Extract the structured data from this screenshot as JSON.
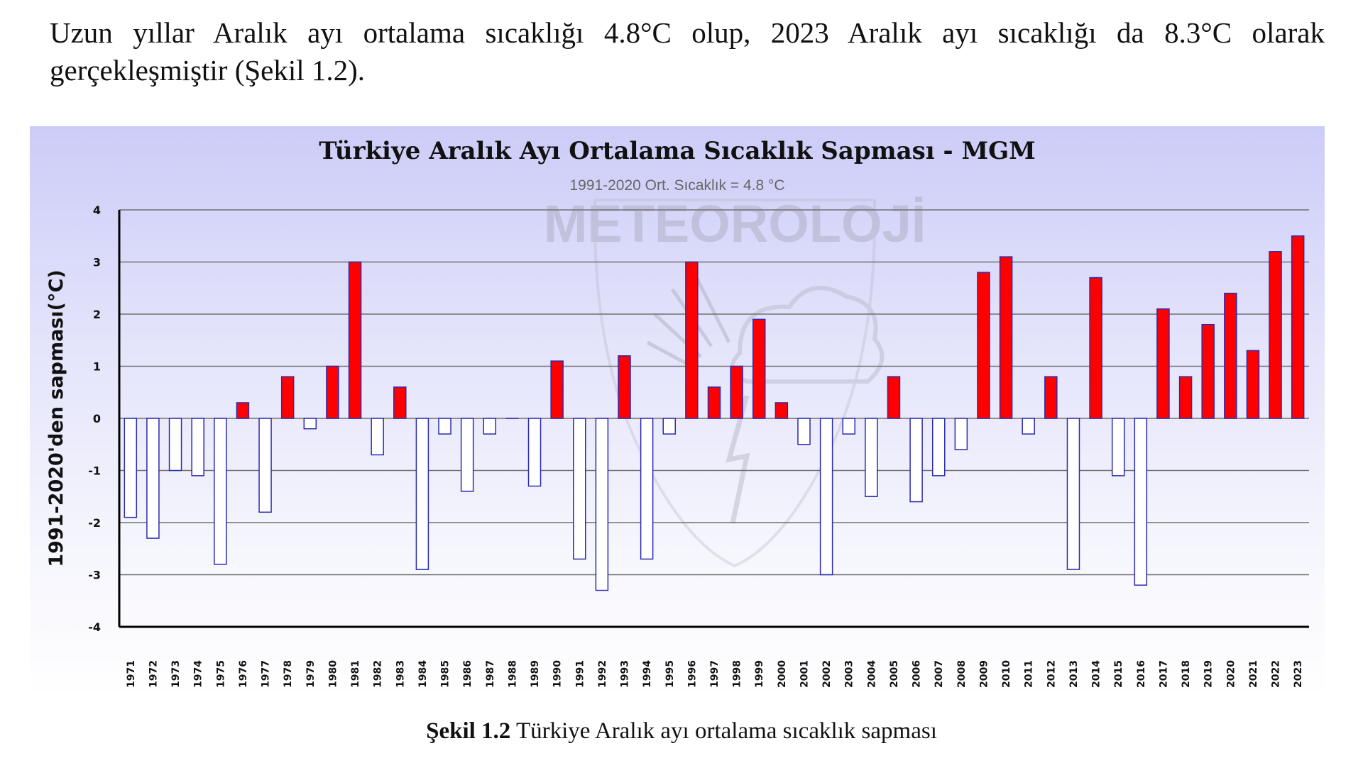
{
  "document": {
    "paragraph": "Uzun yıllar Aralık ayı ortalama sıcaklığı 4.8°C olup, 2023 Aralık ayı sıcaklığı da 8.3°C olarak gerçekleşmiştir (Şekil 1.2).",
    "caption_label": "Şekil 1.2",
    "caption_text": " Türkiye Aralık ayı ortalama sıcaklık sapması",
    "watermark_text": "METEOROLOJİ"
  },
  "chart_data": {
    "type": "bar",
    "title": "Türkiye Aralık Ayı Ortalama Sıcaklık Sapması - MGM",
    "subtitle": "1991-2020 Ort. Sıcaklık = 4.8 °C",
    "ylabel": "1991-2020'den sapması(°C)",
    "xlabel": "",
    "ylim": [
      -4,
      4
    ],
    "yticks": [
      "4",
      "3",
      "2",
      "1",
      "0",
      "-1",
      "-2",
      "-3",
      "-4"
    ],
    "grid": true,
    "colors": {
      "positive": "#ff0000",
      "negative": "#ffffff",
      "border": "#2b2bb0"
    },
    "categories": [
      "1971",
      "1972",
      "1973",
      "1974",
      "1975",
      "1976",
      "1977",
      "1978",
      "1979",
      "1980",
      "1981",
      "1982",
      "1983",
      "1984",
      "1985",
      "1986",
      "1987",
      "1988",
      "1989",
      "1990",
      "1991",
      "1992",
      "1993",
      "1994",
      "1995",
      "1996",
      "1997",
      "1998",
      "1999",
      "2000",
      "2001",
      "2002",
      "2003",
      "2004",
      "2005",
      "2006",
      "2007",
      "2008",
      "2009",
      "2010",
      "2011",
      "2012",
      "2013",
      "2014",
      "2015",
      "2016",
      "2017",
      "2018",
      "2019",
      "2020",
      "2021",
      "2022",
      "2023"
    ],
    "values": [
      -1.9,
      -2.3,
      -1.0,
      -1.1,
      -2.8,
      0.3,
      -1.8,
      0.8,
      -0.2,
      1.0,
      3.0,
      -0.7,
      0.6,
      -2.9,
      -0.3,
      -1.4,
      -0.3,
      0.0,
      -1.3,
      1.1,
      -2.7,
      -3.3,
      1.2,
      -2.7,
      -0.3,
      3.0,
      0.6,
      1.0,
      1.9,
      0.3,
      -0.5,
      -3.0,
      -0.3,
      -1.5,
      0.8,
      -1.6,
      -1.1,
      -0.6,
      2.8,
      3.1,
      -0.3,
      0.8,
      -2.9,
      2.7,
      -1.1,
      -3.2,
      2.1,
      0.8,
      1.8,
      2.4,
      1.3,
      3.2,
      3.5
    ]
  }
}
